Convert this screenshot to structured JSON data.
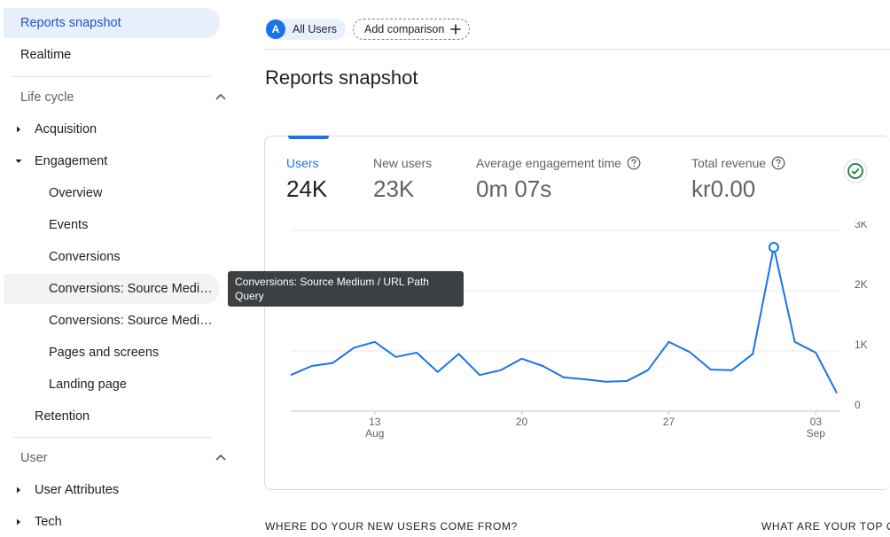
{
  "sidebar": {
    "items": [
      {
        "label": "Reports snapshot",
        "indent": 0,
        "active": true
      },
      {
        "label": "Realtime",
        "indent": 0
      }
    ],
    "lifecycle": {
      "header": "Life cycle",
      "acquisition": "Acquisition",
      "engagement": "Engagement",
      "engagement_children": [
        "Overview",
        "Events",
        "Conversions",
        "Conversions: Source Medium / URL Path Query",
        "Conversions: Source Medium / URL Path",
        "Pages and screens",
        "Landing page"
      ],
      "retention": "Retention"
    },
    "user": {
      "header": "User",
      "attributes": "User Attributes",
      "tech": "Tech"
    }
  },
  "topbar": {
    "segment_avatar": "A",
    "segment_label": "All Users",
    "add_comparison": "Add comparison"
  },
  "page_title": "Reports snapshot",
  "metrics": [
    {
      "label": "Users",
      "value": "24K",
      "selected": true
    },
    {
      "label": "New users",
      "value": "23K",
      "help": false
    },
    {
      "label": "Average engagement time",
      "value": "0m 07s",
      "help": true
    },
    {
      "label": "Total revenue",
      "value": "kr0.00",
      "help": true
    }
  ],
  "tooltip": "Conversions: Source Medium / URL Path Query",
  "chart_data": {
    "type": "line",
    "series": [
      {
        "name": "Users",
        "values": [
          600,
          750,
          800,
          1050,
          1150,
          900,
          970,
          650,
          950,
          600,
          680,
          870,
          750,
          560,
          530,
          490,
          500,
          680,
          1150,
          980,
          690,
          680,
          950,
          2720,
          1150,
          970,
          300
        ]
      }
    ],
    "x_ticks": [
      {
        "index": 4,
        "label": "13",
        "sub": "Aug"
      },
      {
        "index": 11,
        "label": "20"
      },
      {
        "index": 18,
        "label": "27"
      },
      {
        "index": 25,
        "label": "03",
        "sub": "Sep"
      }
    ],
    "y_ticks": [
      "0",
      "1K",
      "2K",
      "3K"
    ],
    "ylim": [
      0,
      3000
    ],
    "highlight_index": 23,
    "color": "#1a73e8"
  },
  "sections": {
    "new_users_source": "WHERE DO YOUR NEW USERS COME FROM?",
    "top_campaigns": "WHAT ARE YOUR TOP C..."
  }
}
